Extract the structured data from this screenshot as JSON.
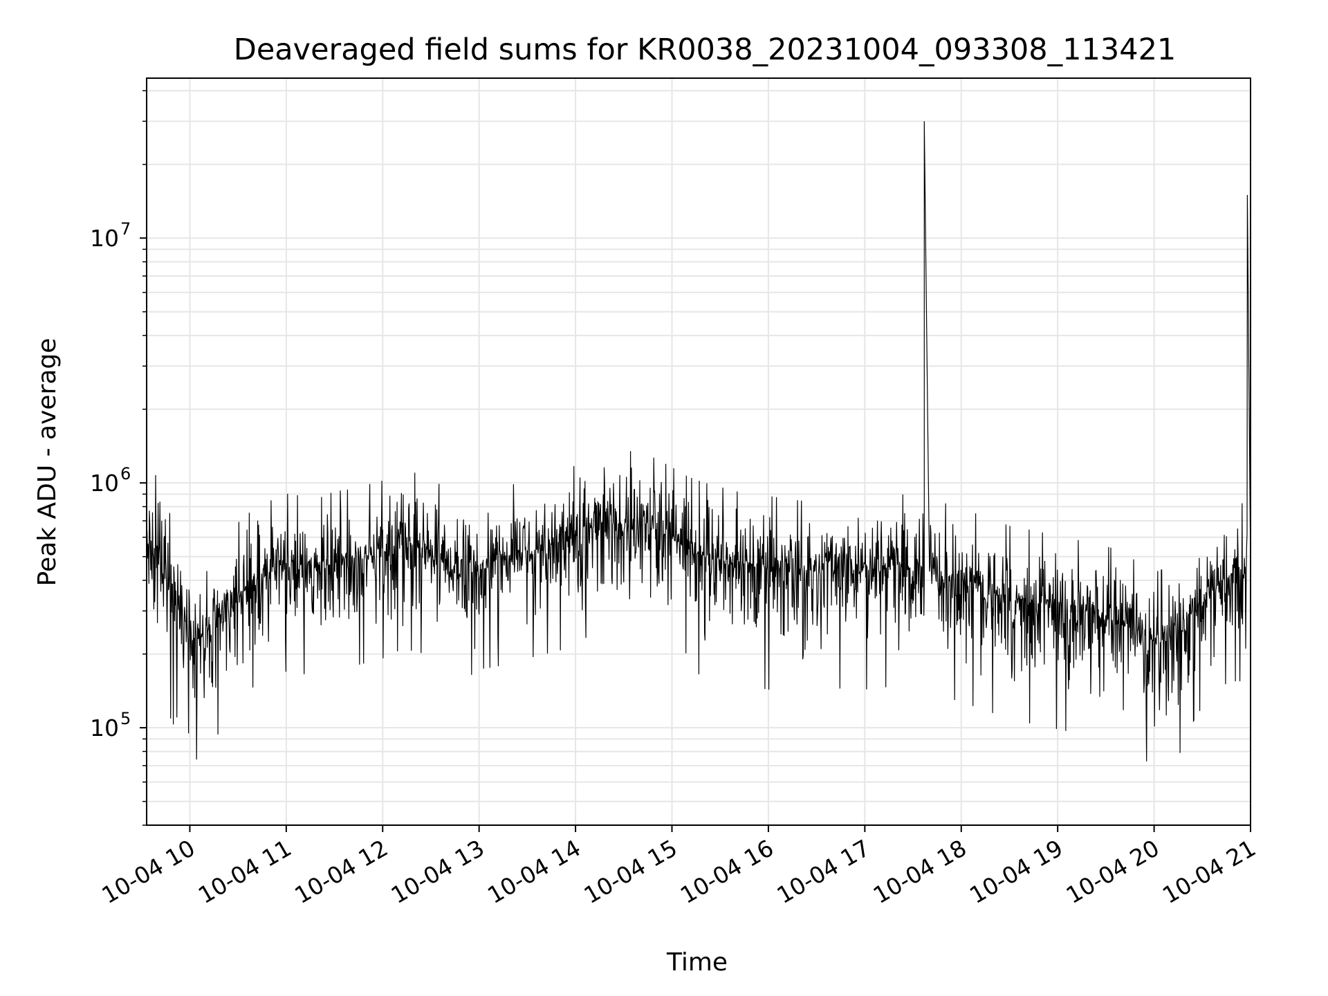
{
  "chart_data": {
    "type": "line",
    "title": "Deaveraged field sums for KR0038_20231004_093308_113421",
    "xlabel": "Time",
    "ylabel": "Peak ADU - average",
    "x_scale": "time",
    "y_scale": "log",
    "xlim": [
      "2023-10-04 09:33:08",
      "2023-10-04 21:00:00"
    ],
    "ylim": [
      40000,
      45000000
    ],
    "grid": true,
    "legend": "none",
    "line_color": "#000000",
    "x_ticks": [
      {
        "label": "10-04 10",
        "t": "2023-10-04 10:00"
      },
      {
        "label": "10-04 11",
        "t": "2023-10-04 11:00"
      },
      {
        "label": "10-04 12",
        "t": "2023-10-04 12:00"
      },
      {
        "label": "10-04 13",
        "t": "2023-10-04 13:00"
      },
      {
        "label": "10-04 14",
        "t": "2023-10-04 14:00"
      },
      {
        "label": "10-04 15",
        "t": "2023-10-04 15:00"
      },
      {
        "label": "10-04 16",
        "t": "2023-10-04 16:00"
      },
      {
        "label": "10-04 17",
        "t": "2023-10-04 17:00"
      },
      {
        "label": "10-04 18",
        "t": "2023-10-04 18:00"
      },
      {
        "label": "10-04 19",
        "t": "2023-10-04 19:00"
      },
      {
        "label": "10-04 20",
        "t": "2023-10-04 20:00"
      },
      {
        "label": "10-04 21",
        "t": "2023-10-04 21:00"
      }
    ],
    "y_ticks": [
      {
        "base": "10",
        "exp": "5",
        "value": 100000
      },
      {
        "base": "10",
        "exp": "6",
        "value": 1000000
      },
      {
        "base": "10",
        "exp": "7",
        "value": 10000000
      }
    ],
    "series": [
      {
        "x": [
          "2023-10-04 09:33:08",
          "2023-10-04 09:40",
          "2023-10-04 09:45",
          "2023-10-04 09:50",
          "2023-10-04 09:55",
          "2023-10-04 10:00",
          "2023-10-04 10:05",
          "2023-10-04 10:10",
          "2023-10-04 10:15",
          "2023-10-04 10:20",
          "2023-10-04 10:30",
          "2023-10-04 10:40",
          "2023-10-04 10:50",
          "2023-10-04 11:00",
          "2023-10-04 11:10",
          "2023-10-04 11:20",
          "2023-10-04 11:30",
          "2023-10-04 11:40",
          "2023-10-04 11:50",
          "2023-10-04 12:00",
          "2023-10-04 12:10",
          "2023-10-04 12:20",
          "2023-10-04 12:30",
          "2023-10-04 12:40",
          "2023-10-04 12:50",
          "2023-10-04 13:00",
          "2023-10-04 13:10",
          "2023-10-04 13:20",
          "2023-10-04 13:30",
          "2023-10-04 13:40",
          "2023-10-04 13:50",
          "2023-10-04 14:00",
          "2023-10-04 14:10",
          "2023-10-04 14:20",
          "2023-10-04 14:30",
          "2023-10-04 14:40",
          "2023-10-04 14:50",
          "2023-10-04 15:00",
          "2023-10-04 15:10",
          "2023-10-04 15:20",
          "2023-10-04 15:30",
          "2023-10-04 15:40",
          "2023-10-04 15:50",
          "2023-10-04 16:00",
          "2023-10-04 16:10",
          "2023-10-04 16:20",
          "2023-10-04 16:30",
          "2023-10-04 16:40",
          "2023-10-04 16:50",
          "2023-10-04 17:00",
          "2023-10-04 17:10",
          "2023-10-04 17:20",
          "2023-10-04 17:30",
          "2023-10-04 17:37",
          "2023-10-04 17:40",
          "2023-10-04 17:50",
          "2023-10-04 18:00",
          "2023-10-04 18:10",
          "2023-10-04 18:20",
          "2023-10-04 18:30",
          "2023-10-04 18:40",
          "2023-10-04 18:50",
          "2023-10-04 19:00",
          "2023-10-04 19:10",
          "2023-10-04 19:20",
          "2023-10-04 19:30",
          "2023-10-04 19:40",
          "2023-10-04 19:50",
          "2023-10-04 20:00",
          "2023-10-04 20:10",
          "2023-10-04 20:20",
          "2023-10-04 20:30",
          "2023-10-04 20:40",
          "2023-10-04 20:50",
          "2023-10-04 20:58",
          "2023-10-04 21:00"
        ],
        "y": [
          550000,
          500000,
          450000,
          380000,
          300000,
          250000,
          230000,
          220000,
          240000,
          270000,
          350000,
          400000,
          430000,
          460000,
          450000,
          440000,
          470000,
          480000,
          500000,
          520000,
          560000,
          560000,
          530000,
          480000,
          420000,
          470000,
          480000,
          500000,
          520000,
          540000,
          560000,
          600000,
          650000,
          720000,
          690000,
          680000,
          640000,
          590000,
          540000,
          510000,
          490000,
          470000,
          460000,
          450000,
          440000,
          430000,
          440000,
          450000,
          460000,
          450000,
          460000,
          460000,
          450000,
          30000000,
          430000,
          420000,
          400000,
          380000,
          360000,
          340000,
          330000,
          320000,
          310000,
          300000,
          290000,
          280000,
          270000,
          240000,
          220000,
          230000,
          260000,
          330000,
          400000,
          420000,
          15000000,
          450000
        ],
        "spread_lo": [
          0.45,
          0.4,
          0.35,
          0.4,
          0.45,
          0.4,
          0.45,
          0.4,
          0.45,
          0.45,
          0.45,
          0.45,
          0.45,
          0.45,
          0.45,
          0.45,
          0.45,
          0.45,
          0.45,
          0.45,
          0.45,
          0.45,
          0.45,
          0.45,
          0.45,
          0.45,
          0.45,
          0.45,
          0.45,
          0.45,
          0.45,
          0.45,
          0.45,
          0.45,
          0.45,
          0.45,
          0.45,
          0.45,
          0.4,
          0.4,
          0.4,
          0.4,
          0.4,
          0.4,
          0.4,
          0.4,
          0.4,
          0.4,
          0.4,
          0.4,
          0.4,
          0.4,
          0.4,
          1.0,
          0.4,
          0.4,
          0.4,
          0.4,
          0.4,
          0.4,
          0.4,
          0.4,
          0.4,
          0.4,
          0.4,
          0.4,
          0.4,
          0.4,
          0.4,
          0.4,
          0.45,
          0.45,
          0.45,
          0.45,
          1.0,
          0.45
        ],
        "spread_hi": [
          2.2,
          2.3,
          2.1,
          1.8,
          1.8,
          1.8,
          1.8,
          1.8,
          1.8,
          1.8,
          1.8,
          1.8,
          1.8,
          1.8,
          1.8,
          1.8,
          1.8,
          1.8,
          1.8,
          1.8,
          1.8,
          1.8,
          1.8,
          1.8,
          1.8,
          1.8,
          1.8,
          1.8,
          1.8,
          1.8,
          1.8,
          1.8,
          1.8,
          1.8,
          1.8,
          1.8,
          1.8,
          1.8,
          1.8,
          1.8,
          1.8,
          1.8,
          1.8,
          1.8,
          1.8,
          1.8,
          1.8,
          1.8,
          1.8,
          1.8,
          1.8,
          1.8,
          1.8,
          1.0,
          1.8,
          1.8,
          1.8,
          1.8,
          1.8,
          1.8,
          1.8,
          1.8,
          1.8,
          1.8,
          1.8,
          1.8,
          1.8,
          1.8,
          1.8,
          1.8,
          1.8,
          1.8,
          1.8,
          1.8,
          1.0,
          1.8
        ]
      }
    ]
  }
}
